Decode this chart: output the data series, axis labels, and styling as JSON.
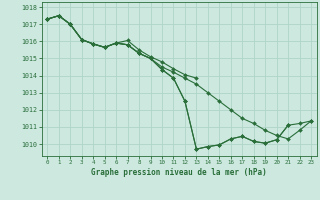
{
  "title": "Graphe pression niveau de la mer (hPa)",
  "bg_color": "#cce8df",
  "grid_color": "#b0d4c8",
  "line_color": "#2a6e3a",
  "marker": "D",
  "markersize": 2.0,
  "linewidth": 0.8,
  "xlim": [
    -0.5,
    23.5
  ],
  "ylim": [
    1009.3,
    1018.3
  ],
  "yticks": [
    1010,
    1011,
    1012,
    1013,
    1014,
    1015,
    1016,
    1017,
    1018
  ],
  "xticks": [
    0,
    1,
    2,
    3,
    4,
    5,
    6,
    7,
    8,
    9,
    10,
    11,
    12,
    13,
    14,
    15,
    16,
    17,
    18,
    19,
    20,
    21,
    22,
    23
  ],
  "series": [
    {
      "x": [
        0,
        1,
        2,
        3,
        4,
        5,
        6,
        7,
        8,
        9,
        10,
        11,
        12,
        13,
        14,
        15,
        16,
        17,
        18,
        19,
        20,
        21
      ],
      "y": [
        1017.3,
        1017.5,
        1017.0,
        1016.1,
        1015.85,
        1015.65,
        1015.9,
        1015.8,
        1015.3,
        1015.0,
        1014.35,
        1013.85,
        1012.5,
        1009.7,
        1009.85,
        1009.95,
        1010.3,
        1010.45,
        1010.15,
        1010.05,
        1010.25,
        1011.1
      ]
    },
    {
      "x": [
        0,
        1,
        2,
        3,
        4,
        5,
        6,
        7,
        8,
        9,
        10,
        11,
        12,
        13,
        14,
        15,
        16,
        17,
        18,
        19,
        20,
        21,
        22,
        23
      ],
      "y": [
        1017.3,
        1017.5,
        1017.0,
        1016.1,
        1015.85,
        1015.65,
        1015.9,
        1015.8,
        1015.3,
        1015.0,
        1014.35,
        1013.85,
        1012.5,
        1009.7,
        1009.85,
        1009.95,
        1010.3,
        1010.45,
        1010.15,
        1010.05,
        1010.25,
        1011.1,
        1011.2,
        1011.35
      ]
    },
    {
      "x": [
        0,
        1,
        2,
        3,
        4,
        5,
        6,
        7,
        8,
        9,
        10,
        11,
        12,
        13
      ],
      "y": [
        1017.3,
        1017.5,
        1017.0,
        1016.1,
        1015.85,
        1015.65,
        1015.9,
        1016.05,
        1015.5,
        1015.1,
        1014.8,
        1014.4,
        1014.05,
        1013.85
      ]
    },
    {
      "x": [
        0,
        1,
        2,
        3,
        4,
        5,
        6,
        7,
        8,
        9,
        10,
        11,
        12,
        13,
        14,
        15,
        16,
        17,
        18,
        19,
        20,
        21,
        22,
        23
      ],
      "y": [
        1017.3,
        1017.5,
        1017.0,
        1016.1,
        1015.85,
        1015.65,
        1015.9,
        1015.8,
        1015.3,
        1015.0,
        1014.5,
        1014.2,
        1013.85,
        1013.5,
        1013.0,
        1012.5,
        1012.0,
        1011.5,
        1011.2,
        1010.8,
        1010.5,
        1010.3,
        1010.8,
        1011.35
      ]
    }
  ]
}
